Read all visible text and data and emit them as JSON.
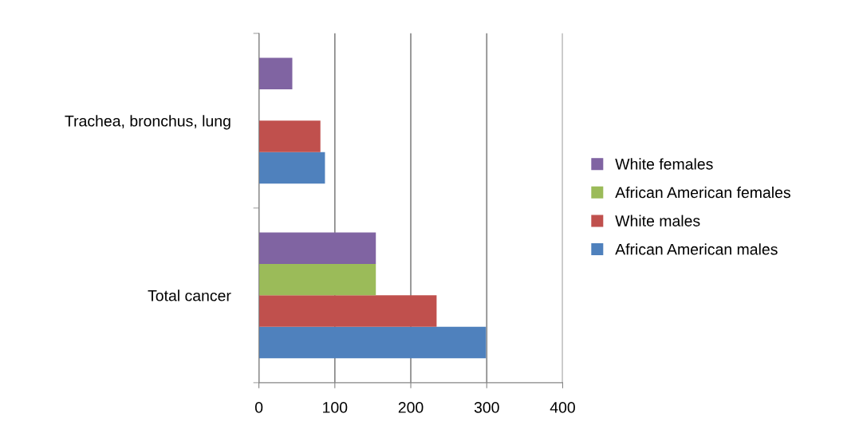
{
  "chart_data": {
    "type": "bar",
    "orientation": "horizontal",
    "categories": [
      "Trachea, bronchus, lung",
      "Total cancer"
    ],
    "series": [
      {
        "name": "African American males",
        "color": "#4f81bd",
        "values": [
          87,
          299
        ]
      },
      {
        "name": "White males",
        "color": "#c0504d",
        "values": [
          81,
          234
        ]
      },
      {
        "name": "African American females",
        "color": "#9bbb59",
        "values": [
          null,
          154
        ]
      },
      {
        "name": "White females",
        "color": "#8064a2",
        "values": [
          44,
          154
        ]
      }
    ],
    "xlim": [
      0,
      400
    ],
    "xticks": [
      0,
      100,
      200,
      300,
      400
    ],
    "grid": "x",
    "legend": "right"
  }
}
